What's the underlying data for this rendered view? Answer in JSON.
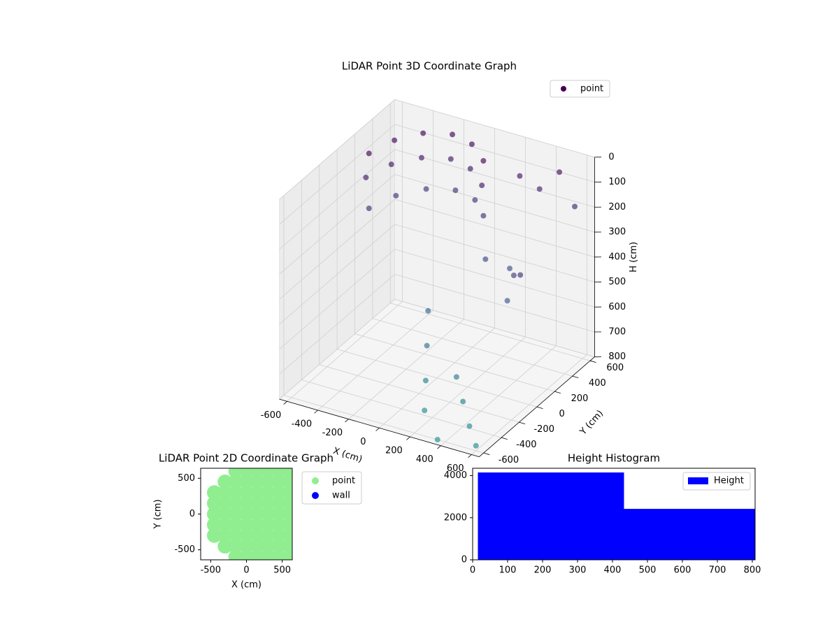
{
  "chart_data": [
    {
      "type": "scatter3d",
      "title": "LiDAR Point 3D Coordinate Graph",
      "x_label": "X (cm)",
      "y_label": "Y (cm)",
      "z_label": "H (cm)",
      "xlim": [
        -650,
        650
      ],
      "ylim": [
        -650,
        650
      ],
      "zlim": [
        0,
        800
      ],
      "z_inverted": true,
      "xticks": [
        -600,
        -400,
        -200,
        0,
        200,
        400,
        600
      ],
      "yticks": [
        -600,
        -400,
        -200,
        0,
        200,
        400,
        600
      ],
      "zticks": [
        0,
        100,
        200,
        300,
        400,
        500,
        600,
        700,
        800
      ],
      "grid": true,
      "cmap": "viridis",
      "legend": "upper right",
      "series": [
        {
          "name": "point",
          "color": "#440154",
          "x": [
            -500,
            -450,
            -350,
            -200,
            -50,
            100,
            -520,
            -470,
            -360,
            -210,
            -60,
            90,
            -500,
            -440,
            -330,
            -180,
            -30,
            100,
            0,
            50,
            100,
            150,
            250,
            350,
            450,
            550,
            200,
            300,
            400,
            500,
            600,
            300,
            400,
            500,
            600,
            350
          ],
          "y": [
            100,
            300,
            450,
            520,
            480,
            350,
            100,
            300,
            450,
            520,
            480,
            350,
            100,
            300,
            450,
            520,
            480,
            350,
            -100,
            -200,
            -300,
            -400,
            500,
            550,
            600,
            600,
            200,
            300,
            100,
            0,
            -100,
            -300,
            -400,
            -500,
            -600,
            -600
          ],
          "h": [
            20,
            20,
            20,
            20,
            20,
            20,
            120,
            120,
            120,
            120,
            120,
            120,
            240,
            240,
            240,
            240,
            240,
            240,
            500,
            600,
            700,
            780,
            100,
            150,
            80,
            200,
            350,
            400,
            450,
            300,
            250,
            650,
            700,
            750,
            780,
            800
          ]
        }
      ]
    },
    {
      "type": "scatter",
      "title": "LiDAR Point 2D Coordinate Graph",
      "x_label": "X (cm)",
      "y_label": "Y (cm)",
      "xlim": [
        -640,
        640
      ],
      "ylim": [
        -640,
        640
      ],
      "xticks": [
        -500,
        0,
        500
      ],
      "yticks": [
        -500,
        0,
        500
      ],
      "legend": "outside right",
      "series": [
        {
          "name": "point",
          "color": "#90ee90",
          "x": [
            -450,
            -450,
            -450,
            -450,
            -450,
            -300,
            -300,
            -300,
            -300,
            -300,
            -300,
            -300,
            -150,
            -150,
            -150,
            -150,
            -150,
            -150,
            -150,
            -150,
            -150,
            0,
            0,
            0,
            0,
            0,
            0,
            0,
            0,
            0,
            150,
            150,
            150,
            150,
            150,
            150,
            150,
            150,
            150,
            300,
            300,
            300,
            300,
            300,
            300,
            300,
            300,
            300,
            450,
            450,
            450,
            450,
            450,
            450,
            450,
            450,
            450,
            600,
            600,
            600,
            600,
            600,
            600,
            600,
            600,
            600
          ],
          "y": [
            -300,
            -150,
            0,
            150,
            300,
            -450,
            -300,
            -150,
            0,
            150,
            300,
            450,
            -600,
            -450,
            -300,
            -150,
            0,
            150,
            300,
            450,
            600,
            -600,
            -450,
            -300,
            -150,
            0,
            150,
            300,
            450,
            600,
            -600,
            -450,
            -300,
            -150,
            0,
            150,
            300,
            450,
            600,
            -600,
            -450,
            -300,
            -150,
            0,
            150,
            300,
            450,
            600,
            -600,
            -450,
            -300,
            -150,
            0,
            150,
            300,
            450,
            600,
            -600,
            -450,
            -300,
            -150,
            0,
            150,
            300,
            450,
            600
          ]
        },
        {
          "name": "wall",
          "color": "#0000ff",
          "x": [],
          "y": []
        }
      ]
    },
    {
      "type": "histogram",
      "title": "Height Histogram",
      "bins": [
        15,
        433,
        808
      ],
      "counts": [
        4150,
        2420
      ],
      "xlim": [
        0,
        808
      ],
      "ylim": [
        0,
        4350
      ],
      "xticks": [
        0,
        100,
        200,
        300,
        400,
        500,
        600,
        700,
        800
      ],
      "yticks": [
        0,
        2000,
        4000
      ],
      "legend": "upper right",
      "series_name": "Height",
      "color": "#0000ff"
    }
  ]
}
